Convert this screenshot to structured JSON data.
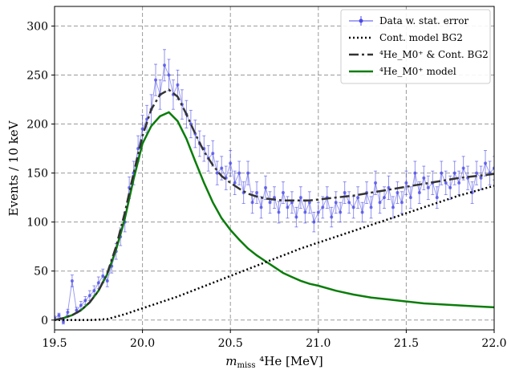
{
  "chart_data": {
    "type": "line",
    "xlabel": "m_miss ⁴He [MeV]",
    "ylabel": "Events / 10 keV",
    "xlim": [
      19.5,
      22.0
    ],
    "ylim": [
      -10,
      320
    ],
    "xticks": [
      19.5,
      20.0,
      20.5,
      21.0,
      21.5,
      22.0
    ],
    "xtick_labels": [
      "19.5",
      "20.0",
      "20.5",
      "21.0",
      "21.5",
      "22.0"
    ],
    "yticks": [
      0,
      50,
      100,
      150,
      200,
      250,
      300
    ],
    "ytick_labels": [
      "0",
      "50",
      "100",
      "150",
      "200",
      "250",
      "300"
    ],
    "grid": true,
    "legend_position": "top-right",
    "legend": [
      {
        "label": "Data w. stat. error",
        "series": "data"
      },
      {
        "label": "Cont. model BG2",
        "series": "bg2"
      },
      {
        "label": "⁴He_M0⁺ & Cont. BG2",
        "series": "total"
      },
      {
        "label": "⁴He_M0⁺ model",
        "series": "signal"
      }
    ],
    "colors": {
      "data": "#4a4ae8",
      "bg2": "#000000",
      "total": "#333333",
      "signal": "#0a7d0a"
    },
    "series": [
      {
        "key": "data",
        "style": "points_with_errorbars",
        "x": [
          19.5,
          19.525,
          19.55,
          19.575,
          19.6,
          19.625,
          19.65,
          19.675,
          19.7,
          19.725,
          19.75,
          19.775,
          19.8,
          19.825,
          19.85,
          19.875,
          19.9,
          19.925,
          19.95,
          19.975,
          20.0,
          20.025,
          20.05,
          20.075,
          20.1,
          20.125,
          20.15,
          20.175,
          20.2,
          20.225,
          20.25,
          20.275,
          20.3,
          20.325,
          20.35,
          20.375,
          20.4,
          20.425,
          20.45,
          20.475,
          20.5,
          20.525,
          20.55,
          20.575,
          20.6,
          20.625,
          20.65,
          20.675,
          20.7,
          20.725,
          20.75,
          20.775,
          20.8,
          20.825,
          20.85,
          20.875,
          20.9,
          20.925,
          20.95,
          20.975,
          21.0,
          21.025,
          21.05,
          21.075,
          21.1,
          21.125,
          21.15,
          21.175,
          21.2,
          21.225,
          21.25,
          21.275,
          21.3,
          21.325,
          21.35,
          21.375,
          21.4,
          21.425,
          21.45,
          21.475,
          21.5,
          21.525,
          21.55,
          21.575,
          21.6,
          21.625,
          21.65,
          21.675,
          21.7,
          21.725,
          21.75,
          21.775,
          21.8,
          21.825,
          21.85,
          21.875,
          21.9,
          21.925,
          21.95,
          21.975,
          22.0
        ],
        "y": [
          2,
          5,
          -2,
          8,
          40,
          10,
          15,
          20,
          25,
          30,
          38,
          45,
          40,
          55,
          70,
          85,
          100,
          135,
          150,
          175,
          195,
          205,
          215,
          245,
          230,
          260,
          250,
          230,
          240,
          220,
          210,
          200,
          190,
          180,
          175,
          165,
          170,
          150,
          155,
          145,
          160,
          140,
          150,
          130,
          150,
          120,
          130,
          115,
          135,
          120,
          125,
          110,
          130,
          115,
          120,
          105,
          125,
          110,
          120,
          100,
          110,
          115,
          125,
          105,
          120,
          110,
          130,
          120,
          115,
          125,
          110,
          130,
          115,
          140,
          120,
          125,
          135,
          115,
          130,
          120,
          140,
          125,
          150,
          130,
          145,
          135,
          140,
          125,
          150,
          140,
          135,
          150,
          140,
          155,
          145,
          130,
          150,
          145,
          160,
          150,
          155
        ],
        "yerr": [
          2,
          2,
          2,
          3,
          6,
          3,
          4,
          4,
          5,
          5,
          6,
          7,
          6,
          7,
          8,
          9,
          10,
          11,
          12,
          13,
          14,
          14,
          15,
          16,
          15,
          16,
          16,
          15,
          15,
          15,
          14,
          14,
          14,
          13,
          13,
          13,
          13,
          12,
          12,
          12,
          13,
          12,
          12,
          11,
          12,
          11,
          11,
          11,
          12,
          11,
          11,
          11,
          11,
          11,
          11,
          10,
          11,
          11,
          11,
          10,
          10,
          11,
          11,
          10,
          11,
          10,
          11,
          11,
          11,
          11,
          10,
          11,
          11,
          12,
          11,
          11,
          12,
          11,
          11,
          11,
          12,
          11,
          12,
          11,
          12,
          12,
          12,
          11,
          12,
          12,
          12,
          12,
          12,
          12,
          12,
          11,
          12,
          12,
          13,
          12,
          12
        ]
      },
      {
        "key": "bg2",
        "style": "dotted",
        "x": [
          19.5,
          19.6,
          19.7,
          19.8,
          19.9,
          20.0,
          20.1,
          20.2,
          20.3,
          20.4,
          20.5,
          20.6,
          20.7,
          20.8,
          20.9,
          21.0,
          21.1,
          21.2,
          21.3,
          21.4,
          21.5,
          21.6,
          21.7,
          21.8,
          21.9,
          22.0
        ],
        "y": [
          0,
          0,
          0,
          1,
          6,
          12,
          18,
          24,
          31,
          38,
          45,
          52,
          59,
          66,
          73,
          79,
          85,
          91,
          97,
          103,
          109,
          115,
          121,
          127,
          132,
          137
        ]
      },
      {
        "key": "total",
        "style": "dashdot",
        "x": [
          19.5,
          19.55,
          19.6,
          19.65,
          19.7,
          19.75,
          19.8,
          19.85,
          19.9,
          19.95,
          20.0,
          20.05,
          20.1,
          20.15,
          20.2,
          20.25,
          20.3,
          20.35,
          20.4,
          20.45,
          20.5,
          20.55,
          20.6,
          20.65,
          20.7,
          20.75,
          20.8,
          20.85,
          20.9,
          20.95,
          21.0,
          21.1,
          21.2,
          21.3,
          21.4,
          21.5,
          21.6,
          21.7,
          21.8,
          21.9,
          22.0
        ],
        "y": [
          0,
          2,
          5,
          10,
          18,
          30,
          48,
          75,
          110,
          150,
          188,
          215,
          230,
          235,
          228,
          210,
          190,
          172,
          158,
          147,
          140,
          134,
          129,
          126,
          124,
          123,
          122,
          122,
          122,
          122,
          123,
          125,
          127,
          130,
          133,
          136,
          139,
          142,
          145,
          147,
          149
        ]
      },
      {
        "key": "signal",
        "style": "solid",
        "x": [
          19.5,
          19.55,
          19.6,
          19.65,
          19.7,
          19.75,
          19.8,
          19.85,
          19.9,
          19.95,
          20.0,
          20.05,
          20.1,
          20.15,
          20.2,
          20.25,
          20.3,
          20.35,
          20.4,
          20.45,
          20.5,
          20.55,
          20.6,
          20.65,
          20.7,
          20.75,
          20.8,
          20.85,
          20.9,
          20.95,
          21.0,
          21.1,
          21.2,
          21.3,
          21.4,
          21.5,
          21.6,
          21.7,
          21.8,
          21.9,
          22.0
        ],
        "y": [
          0,
          2,
          5,
          10,
          18,
          30,
          47,
          72,
          104,
          144,
          180,
          198,
          208,
          212,
          203,
          185,
          162,
          140,
          120,
          104,
          92,
          82,
          73,
          66,
          60,
          54,
          48,
          44,
          40,
          37,
          35,
          30,
          26,
          23,
          21,
          19,
          17,
          16,
          15,
          14,
          13
        ]
      }
    ]
  }
}
